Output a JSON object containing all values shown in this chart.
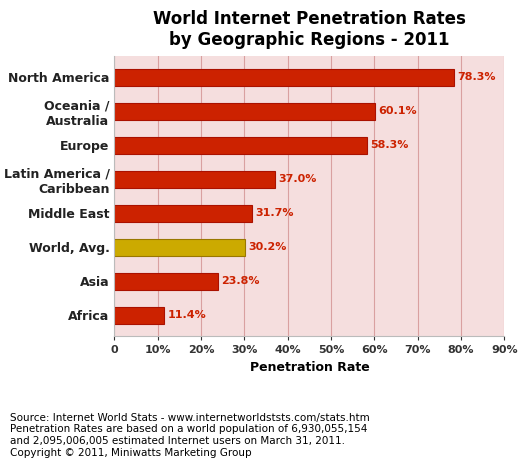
{
  "title": "World Internet Penetration Rates\nby Geographic Regions - 2011",
  "categories": [
    "North America",
    "Oceania /\nAustralia",
    "Europe",
    "Latin America /\nCaribbean",
    "Middle East",
    "World, Avg.",
    "Asia",
    "Africa"
  ],
  "values": [
    78.3,
    60.1,
    58.3,
    37.0,
    31.7,
    30.2,
    23.8,
    11.4
  ],
  "bar_colors": [
    "#cc2200",
    "#cc2200",
    "#cc2200",
    "#cc2200",
    "#cc2200",
    "#ccaa00",
    "#cc2200",
    "#cc2200"
  ],
  "bar_edge_colors": [
    "#aa1100",
    "#aa1100",
    "#aa1100",
    "#aa1100",
    "#aa1100",
    "#997700",
    "#aa1100",
    "#aa1100"
  ],
  "label_color": "#cc2200",
  "xlabel": "Penetration Rate",
  "xlim": [
    0,
    90
  ],
  "xticks": [
    0,
    10,
    20,
    30,
    40,
    50,
    60,
    70,
    80,
    90
  ],
  "xtick_labels": [
    "0",
    "10%",
    "20%",
    "30%",
    "40%",
    "50%",
    "60%",
    "70%",
    "80%",
    "90%"
  ],
  "plot_bg_color": "#f5dede",
  "grid_color": "#d9a0a0",
  "title_fontsize": 12,
  "axis_label_fontsize": 9,
  "bar_label_fontsize": 8,
  "tick_fontsize": 8,
  "ytick_fontsize": 9,
  "footnote": "Source: Internet World Stats - www.internetworldststs.com/stats.htm\nPenetration Rates are based on a world population of 6,930,055,154\nand 2,095,006,005 estimated Internet users on March 31, 2011.\nCopyright © 2011, Miniwatts Marketing Group",
  "footnote_fontsize": 7.5
}
